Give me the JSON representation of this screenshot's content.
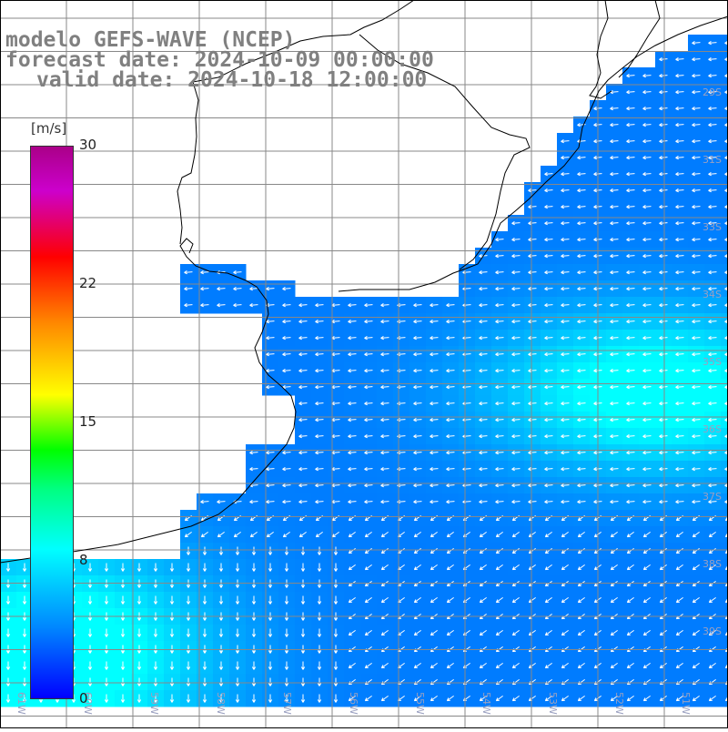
{
  "title": {
    "line1": "modelo GEFS-WAVE (NCEP)",
    "line2": "forecast date: 2024-10-09 00:00:00",
    "line3": "valid date: 2024-10-18 12:00:00"
  },
  "colorbar": {
    "unit": "[m/s]",
    "ticks": [
      "30",
      "22",
      "15",
      "8",
      "0"
    ],
    "tick_values": [
      30,
      22,
      15,
      8,
      0
    ],
    "range": [
      0,
      30
    ],
    "colors": [
      "#0000ff",
      "#0088ff",
      "#00ffff",
      "#00ff00",
      "#ffff00",
      "#ff8800",
      "#ff0000",
      "#cc00cc",
      "#aa0088"
    ]
  },
  "map": {
    "lat_labels": [
      "29S",
      "31S",
      "33S",
      "34S",
      "35S",
      "36S",
      "37S",
      "38S",
      "39S"
    ],
    "lon_labels": [
      "61W",
      "60W",
      "59W",
      "58W",
      "57W",
      "56W",
      "55W",
      "54W",
      "53W",
      "52W",
      "51W"
    ],
    "colors": {
      "land": "#ffffff",
      "grid": "#888888",
      "coast": "#000000",
      "vector": "#ffffff",
      "title": "#808080"
    }
  }
}
